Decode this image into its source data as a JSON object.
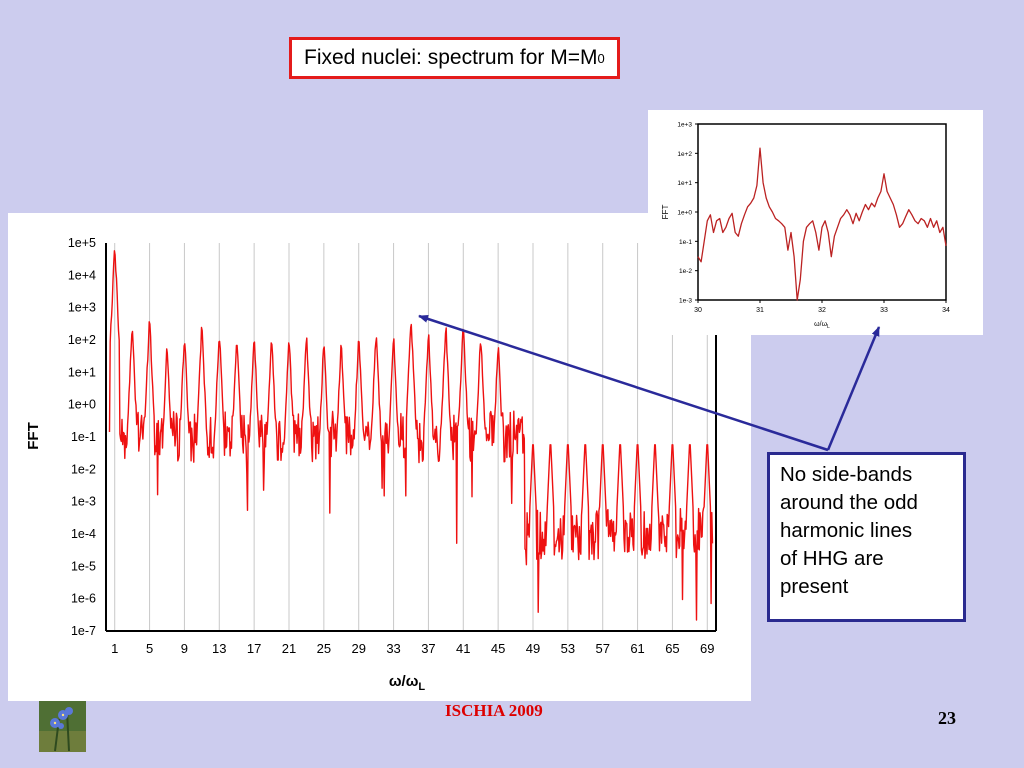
{
  "slide": {
    "title_main": "Fixed nuclei: spectrum for M=M",
    "title_sub": "0",
    "note_lines": [
      "No side-bands",
      "around the odd",
      "harmonic lines",
      "of HHG are",
      "present"
    ],
    "footer": "ISCHIA 2009",
    "page_number": "23",
    "colors": {
      "background": "#ccccee",
      "title_border": "#e41b1b",
      "note_border": "#2a2a8f",
      "arrow": "#2a2a9a",
      "series": "#ee1111",
      "footer": "#dd0000"
    },
    "icons": {
      "logo": "blue-flower-photo-icon"
    }
  },
  "chart_data": [
    {
      "type": "line",
      "title": "",
      "ylabel": "FFT",
      "xlabel_main": "ω/ω",
      "xlabel_sub": "L",
      "yscale": "log",
      "ylim": [
        1e-07,
        100000.0
      ],
      "xlim": [
        0,
        70
      ],
      "x_ticks": [
        "1",
        "5",
        "9",
        "13",
        "17",
        "21",
        "25",
        "29",
        "33",
        "37",
        "41",
        "45",
        "49",
        "53",
        "57",
        "61",
        "65",
        "69"
      ],
      "y_ticks": [
        "1e-7",
        "1e-6",
        "1e-5",
        "1e-4",
        "1e-3",
        "1e-2",
        "1e-1",
        "1e+0",
        "1e+1",
        "1e+2",
        "1e+3",
        "1e+4",
        "1e+5"
      ],
      "grid": "vertical",
      "harmonic_peaks": {
        "x": [
          1,
          3,
          5,
          7,
          9,
          11,
          13,
          15,
          17,
          19,
          21,
          23,
          25,
          27,
          29,
          31,
          33,
          35,
          37,
          39,
          41,
          43,
          45
        ],
        "y": [
          100000,
          300,
          500,
          80,
          150,
          300,
          200,
          150,
          150,
          150,
          150,
          150,
          100,
          100,
          150,
          200,
          150,
          600,
          200,
          300,
          300,
          150,
          80
        ]
      },
      "plateau_level": 0.1,
      "cutoff_x": 48,
      "post_cutoff_level": 0.0001,
      "series": [
        {
          "values": "log-scale FFT spectrum with odd harmonic peaks"
        }
      ]
    },
    {
      "type": "line",
      "title": "",
      "ylabel": "FFT",
      "xlabel_main": "ω/ω",
      "xlabel_sub": "L",
      "yscale": "log",
      "ylim": [
        0.001,
        1000
      ],
      "xlim": [
        30,
        34
      ],
      "x_ticks": [
        "30",
        "31",
        "32",
        "33",
        "34"
      ],
      "y_ticks": [
        "1e-3",
        "1e-2",
        "1e-1",
        "1e+0",
        "1e+1",
        "1e+2",
        "1e+3"
      ],
      "grid": "off",
      "points": {
        "x": [
          30.0,
          30.05,
          30.1,
          30.15,
          30.2,
          30.25,
          30.3,
          30.35,
          30.4,
          30.45,
          30.5,
          30.55,
          30.6,
          30.65,
          30.7,
          30.75,
          30.8,
          30.85,
          30.9,
          30.95,
          31.0,
          31.05,
          31.1,
          31.15,
          31.2,
          31.25,
          31.3,
          31.35,
          31.4,
          31.45,
          31.5,
          31.55,
          31.6,
          31.65,
          31.7,
          31.75,
          31.8,
          31.85,
          31.9,
          31.95,
          32.0,
          32.05,
          32.1,
          32.15,
          32.2,
          32.25,
          32.3,
          32.35,
          32.4,
          32.45,
          32.5,
          32.55,
          32.6,
          32.65,
          32.7,
          32.75,
          32.8,
          32.85,
          32.9,
          32.95,
          33.0,
          33.05,
          33.1,
          33.15,
          33.2,
          33.25,
          33.3,
          33.35,
          33.4,
          33.45,
          33.5,
          33.55,
          33.6,
          33.65,
          33.7,
          33.75,
          33.8,
          33.85,
          33.9,
          33.95,
          34.0
        ],
        "y": [
          0.03,
          0.02,
          0.1,
          0.5,
          0.8,
          0.2,
          0.5,
          0.6,
          0.2,
          0.3,
          0.6,
          0.9,
          0.2,
          0.15,
          0.4,
          0.8,
          1.5,
          2,
          3,
          8,
          150,
          10,
          3,
          1.5,
          1,
          0.6,
          0.5,
          0.4,
          0.3,
          0.05,
          0.2,
          0.03,
          0.001,
          0.005,
          0.1,
          0.3,
          0.4,
          0.5,
          0.2,
          0.05,
          0.3,
          0.5,
          0.2,
          0.03,
          0.15,
          0.3,
          0.6,
          0.8,
          1.2,
          0.8,
          0.4,
          0.9,
          0.5,
          1,
          1.8,
          1.2,
          2,
          1.5,
          3,
          5,
          20,
          5,
          3,
          1.8,
          0.8,
          0.3,
          0.4,
          0.7,
          1.2,
          0.8,
          0.5,
          0.4,
          0.6,
          0.5,
          0.3,
          0.6,
          0.3,
          0.5,
          0.2,
          0.3,
          0.07
        ]
      }
    }
  ]
}
